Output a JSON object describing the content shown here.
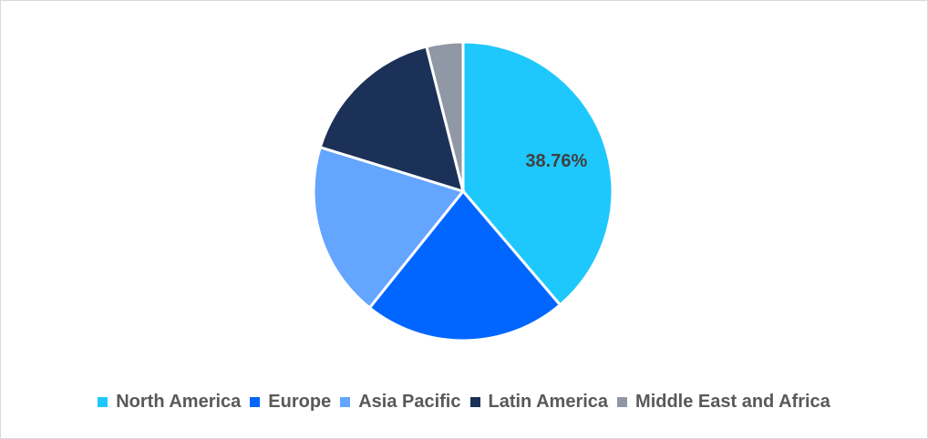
{
  "chart_data": {
    "type": "pie",
    "categories": [
      "North America",
      "Europe",
      "Asia Pacific",
      "Latin America",
      "Middle East and Africa"
    ],
    "values": [
      38.76,
      22.0,
      19.0,
      16.3,
      3.94
    ],
    "unit": "%",
    "colors": [
      "#1ec8fc",
      "#0066ff",
      "#64a5ff",
      "#1c3157",
      "#9098a5"
    ],
    "data_labels": [
      {
        "category": "North America",
        "text": "38.76%"
      }
    ],
    "legend_position": "bottom",
    "start_angle_deg": 0,
    "direction": "clockwise"
  }
}
